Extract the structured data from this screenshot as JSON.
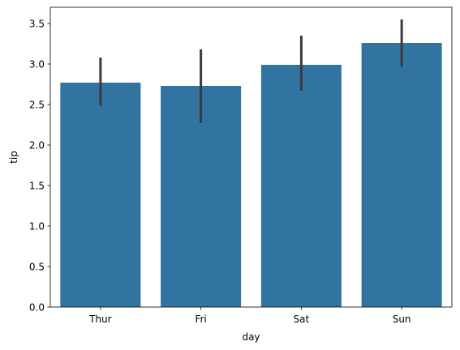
{
  "chart_data": {
    "type": "bar",
    "categories": [
      "Thur",
      "Fri",
      "Sat",
      "Sun"
    ],
    "values": [
      2.77,
      2.73,
      2.99,
      3.26
    ],
    "error_low": [
      2.48,
      2.27,
      2.67,
      2.97
    ],
    "error_high": [
      3.08,
      3.18,
      3.35,
      3.55
    ],
    "title": "",
    "xlabel": "day",
    "ylabel": "tip",
    "ylim": [
      0,
      3.7
    ],
    "yticks": [
      "0.0",
      "0.5",
      "1.0",
      "1.5",
      "2.0",
      "2.5",
      "3.0",
      "3.5"
    ],
    "grid": false,
    "colors": {
      "bar": "#3274a1",
      "error": "#3b3b3b"
    }
  }
}
